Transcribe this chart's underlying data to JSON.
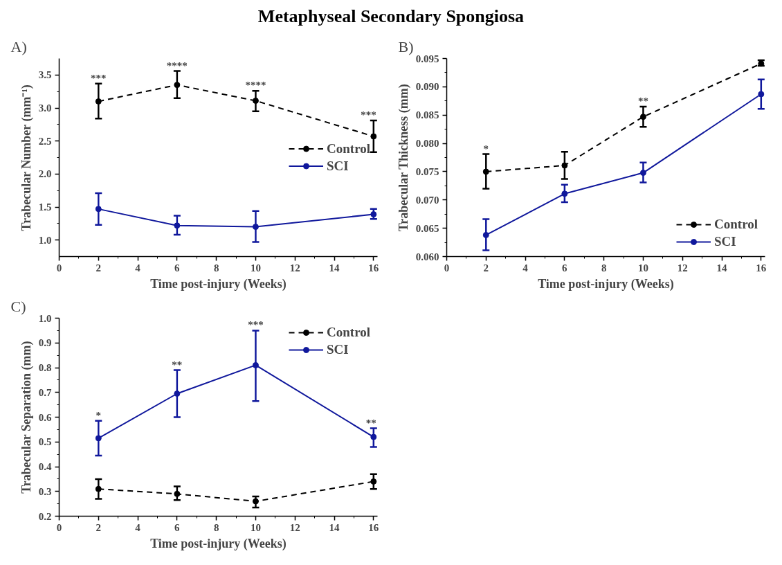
{
  "chart_data": [
    {
      "type": "line",
      "title": "Metaphyseal Secondary Spongiosa",
      "xlabel": "Time post-injury (Weeks)",
      "ylabel": "Trabecular Number (mm⁻¹)",
      "x": [
        2,
        6,
        10,
        16
      ],
      "xlim": [
        0,
        16.2
      ],
      "xticks": [
        0,
        2,
        4,
        6,
        8,
        10,
        12,
        14,
        16
      ],
      "ylim": [
        0.75,
        3.75
      ],
      "yticks": [
        {
          "value": 1,
          "label": "1.0"
        },
        1.5,
        {
          "value": 2,
          "label": "2.0"
        },
        2.5,
        {
          "value": 3,
          "label": "3.0"
        },
        3.5
      ],
      "marker": "circle",
      "grid": false,
      "legend": "right",
      "series": [
        {
          "name": "Control",
          "color": "#000000",
          "line_style": "dashed",
          "values": [
            3.1,
            3.35,
            3.11,
            2.57
          ],
          "errors": [
            [
              2.84,
              3.37
            ],
            [
              3.15,
              3.56
            ],
            [
              2.95,
              3.26
            ],
            [
              2.33,
              2.81
            ]
          ]
        },
        {
          "name": "SCI",
          "color": "#10189c",
          "line_style": "solid",
          "values": [
            1.47,
            1.22,
            1.2,
            1.39
          ],
          "errors": [
            [
              1.23,
              1.71
            ],
            [
              1.08,
              1.37
            ],
            [
              0.97,
              1.44
            ],
            [
              1.32,
              1.47
            ]
          ]
        }
      ],
      "annotations": [
        "A)",
        {
          "text": "***",
          "x": 2,
          "y": 3.37
        },
        {
          "text": "****",
          "x": 6,
          "y": 3.56
        },
        {
          "text": "****",
          "x": 10,
          "y": 3.26
        },
        {
          "text": "***",
          "x": 16,
          "y": 2.81
        }
      ]
    },
    {
      "type": "line",
      "xlabel": "Time post-injury (Weeks)",
      "ylabel": "Trabecular Thickness (mm)",
      "x": [
        2,
        6,
        10,
        16
      ],
      "xlim": [
        0,
        16.2
      ],
      "xticks": [
        0,
        2,
        4,
        6,
        8,
        10,
        12,
        14,
        16
      ],
      "ylim": [
        0.06,
        0.095
      ],
      "yticks": [
        {
          "value": 0.06,
          "label": "0.060"
        },
        0.065,
        {
          "value": 0.07,
          "label": "0.070"
        },
        0.075,
        {
          "value": 0.08,
          "label": "0.080"
        },
        0.085,
        {
          "value": 0.09,
          "label": "0.090"
        },
        0.095
      ],
      "marker": "circle",
      "grid": false,
      "legend": "bottom right",
      "series": [
        {
          "name": "Control",
          "color": "#000000",
          "line_style": "dashed",
          "values": [
            0.075,
            0.0761,
            0.0847,
            0.0941
          ],
          "errors": [
            [
              0.072,
              0.0781
            ],
            [
              0.0737,
              0.0785
            ],
            [
              0.0829,
              0.0865
            ],
            [
              0.0937,
              0.0947
            ]
          ]
        },
        {
          "name": "SCI",
          "color": "#10189c",
          "line_style": "solid",
          "values": [
            0.0638,
            0.0711,
            0.0748,
            0.0887
          ],
          "errors": [
            [
              0.0611,
              0.0666
            ],
            [
              0.0696,
              0.0727
            ],
            [
              0.0731,
              0.0766
            ],
            [
              0.0861,
              0.0913
            ]
          ]
        }
      ],
      "annotations": [
        "B)",
        {
          "text": "*",
          "x": 2,
          "y": 0.0781
        },
        {
          "text": "**",
          "x": 10,
          "y": 0.0865
        }
      ]
    },
    {
      "type": "line",
      "xlabel": "Time post-injury (Weeks)",
      "ylabel": "Trabecular Separation (mm)",
      "x": [
        2,
        6,
        10,
        16
      ],
      "xlim": [
        0,
        16.2
      ],
      "xticks": [
        0,
        2,
        4,
        6,
        8,
        10,
        12,
        14,
        16
      ],
      "ylim": [
        0.2,
        1.0
      ],
      "yticks": [
        0.2,
        0.3,
        0.4,
        0.5,
        0.6,
        0.7,
        0.8,
        0.9,
        {
          "value": 1,
          "label": "1.0"
        }
      ],
      "marker": "circle",
      "grid": false,
      "legend": "top right",
      "series": [
        {
          "name": "Control",
          "color": "#000000",
          "line_style": "dashed",
          "values": [
            0.31,
            0.29,
            0.26,
            0.34
          ],
          "errors": [
            [
              0.27,
              0.35
            ],
            [
              0.265,
              0.32
            ],
            [
              0.235,
              0.28
            ],
            [
              0.31,
              0.37
            ]
          ]
        },
        {
          "name": "SCI",
          "color": "#10189c",
          "line_style": "solid",
          "values": [
            0.515,
            0.695,
            0.81,
            0.52
          ],
          "errors": [
            [
              0.445,
              0.585
            ],
            [
              0.6,
              0.79
            ],
            [
              0.665,
              0.95
            ],
            [
              0.48,
              0.555
            ]
          ]
        }
      ],
      "annotations": [
        "C)",
        {
          "text": "*",
          "x": 2,
          "y": 0.585
        },
        {
          "text": "**",
          "x": 6,
          "y": 0.79
        },
        {
          "text": "***",
          "x": 10,
          "y": 0.95
        },
        {
          "text": "**",
          "x": 16,
          "y": 0.555
        }
      ]
    }
  ]
}
